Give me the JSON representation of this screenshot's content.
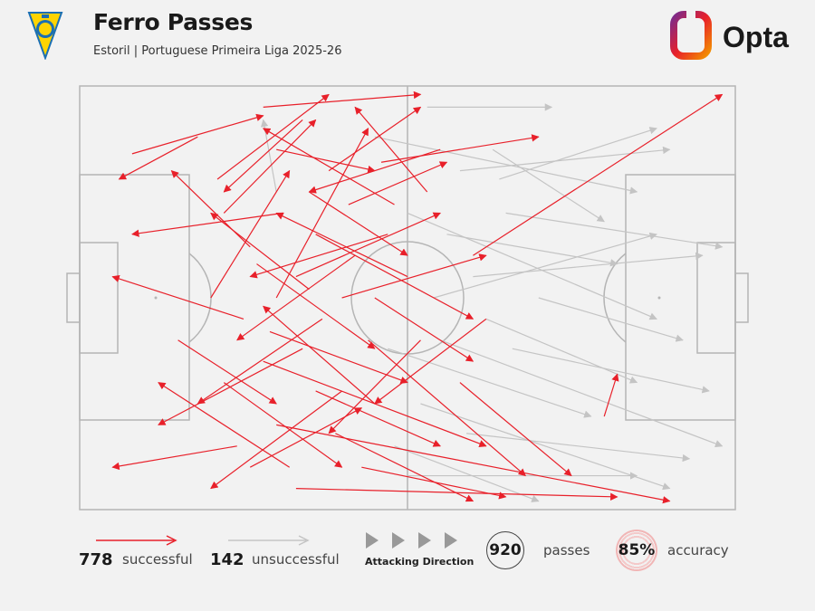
{
  "header": {
    "title": "Ferro Passes",
    "subtitle": "Estoril | Portuguese Primeira Liga 2025-26",
    "brand": "Opta",
    "crest_icon": "estoril-crest-icon"
  },
  "colors": {
    "successful": "#e8202a",
    "unsuccessful": "#c4c4c4",
    "pitch_lines": "#b5b5b5",
    "background": "#f2f2f2",
    "brand_gradient": [
      "#7a2b8c",
      "#e8202a",
      "#f39200"
    ]
  },
  "legend": {
    "successful_count": "778",
    "successful_label": "successful",
    "unsuccessful_count": "142",
    "unsuccessful_label": "unsuccessful",
    "attacking_direction_label": "Attacking Direction",
    "total_passes": "920",
    "passes_label": "passes",
    "accuracy": "85%",
    "accuracy_label": "accuracy"
  },
  "chart_data": {
    "type": "scatter",
    "description_kind": "pass map",
    "attacking_direction": "left-to-right",
    "series": [
      {
        "name": "successful",
        "count": 778,
        "passes": [
          [
            0.08,
            0.16,
            0.28,
            0.07
          ],
          [
            0.18,
            0.12,
            0.06,
            0.22
          ],
          [
            0.22,
            0.3,
            0.36,
            0.08
          ],
          [
            0.26,
            0.38,
            0.14,
            0.2
          ],
          [
            0.3,
            0.5,
            0.44,
            0.1
          ],
          [
            0.34,
            0.62,
            0.12,
            0.8
          ],
          [
            0.38,
            0.2,
            0.52,
            0.05
          ],
          [
            0.4,
            0.72,
            0.2,
            0.95
          ],
          [
            0.25,
            0.55,
            0.05,
            0.45
          ],
          [
            0.33,
            0.45,
            0.55,
            0.3
          ],
          [
            0.28,
            0.65,
            0.62,
            0.85
          ],
          [
            0.36,
            0.35,
            0.6,
            0.55
          ],
          [
            0.44,
            0.6,
            0.68,
            0.92
          ],
          [
            0.3,
            0.8,
            0.9,
            0.98
          ],
          [
            0.42,
            0.4,
            0.24,
            0.6
          ],
          [
            0.48,
            0.28,
            0.28,
            0.1
          ],
          [
            0.35,
            0.25,
            0.5,
            0.4
          ],
          [
            0.22,
            0.7,
            0.4,
            0.9
          ],
          [
            0.5,
            0.45,
            0.3,
            0.3
          ],
          [
            0.32,
            0.9,
            0.12,
            0.7
          ],
          [
            0.55,
            0.15,
            0.35,
            0.25
          ],
          [
            0.27,
            0.42,
            0.45,
            0.62
          ],
          [
            0.37,
            0.55,
            0.18,
            0.75
          ],
          [
            0.45,
            0.75,
            0.28,
            0.52
          ],
          [
            0.2,
            0.5,
            0.32,
            0.2
          ],
          [
            0.39,
            0.82,
            0.6,
            0.98
          ],
          [
            0.31,
            0.3,
            0.08,
            0.35
          ],
          [
            0.46,
            0.18,
            0.7,
            0.12
          ],
          [
            0.24,
            0.85,
            0.05,
            0.9
          ],
          [
            0.52,
            0.6,
            0.38,
            0.82
          ],
          [
            0.29,
            0.58,
            0.5,
            0.7
          ],
          [
            0.43,
            0.9,
            0.65,
            0.97
          ],
          [
            0.34,
            0.08,
            0.22,
            0.25
          ],
          [
            0.58,
            0.7,
            0.75,
            0.92
          ],
          [
            0.4,
            0.5,
            0.62,
            0.4
          ],
          [
            0.21,
            0.22,
            0.38,
            0.02
          ],
          [
            0.47,
            0.35,
            0.26,
            0.45
          ],
          [
            0.36,
            0.72,
            0.55,
            0.85
          ],
          [
            0.26,
            0.9,
            0.43,
            0.76
          ],
          [
            0.53,
            0.25,
            0.42,
            0.05
          ],
          [
            0.3,
            0.15,
            0.45,
            0.2
          ],
          [
            0.62,
            0.55,
            0.45,
            0.75
          ],
          [
            0.35,
            0.48,
            0.2,
            0.3
          ],
          [
            0.41,
            0.28,
            0.56,
            0.18
          ],
          [
            0.45,
            0.5,
            0.6,
            0.65
          ],
          [
            0.8,
            0.78,
            0.82,
            0.68
          ],
          [
            0.6,
            0.4,
            0.98,
            0.02
          ],
          [
            0.33,
            0.95,
            0.82,
            0.97
          ],
          [
            0.28,
            0.05,
            0.52,
            0.02
          ],
          [
            0.15,
            0.6,
            0.3,
            0.75
          ]
        ]
      },
      {
        "name": "unsuccessful",
        "count": 142,
        "passes": [
          [
            0.5,
            0.3,
            0.88,
            0.55
          ],
          [
            0.55,
            0.6,
            0.98,
            0.85
          ],
          [
            0.45,
            0.12,
            0.85,
            0.25
          ],
          [
            0.6,
            0.45,
            0.95,
            0.4
          ],
          [
            0.52,
            0.75,
            0.9,
            0.95
          ],
          [
            0.58,
            0.2,
            0.9,
            0.15
          ],
          [
            0.48,
            0.85,
            0.7,
            0.98
          ],
          [
            0.62,
            0.55,
            0.85,
            0.7
          ],
          [
            0.56,
            0.35,
            0.82,
            0.42
          ],
          [
            0.5,
            0.92,
            0.85,
            0.92
          ],
          [
            0.65,
            0.3,
            0.98,
            0.38
          ],
          [
            0.54,
            0.5,
            0.88,
            0.35
          ],
          [
            0.63,
            0.15,
            0.8,
            0.32
          ],
          [
            0.47,
            0.62,
            0.78,
            0.78
          ],
          [
            0.59,
            0.82,
            0.93,
            0.88
          ],
          [
            0.3,
            0.25,
            0.28,
            0.08
          ],
          [
            0.66,
            0.62,
            0.96,
            0.72
          ],
          [
            0.53,
            0.05,
            0.72,
            0.05
          ],
          [
            0.64,
            0.22,
            0.88,
            0.1
          ],
          [
            0.7,
            0.5,
            0.92,
            0.6
          ]
        ]
      }
    ]
  }
}
